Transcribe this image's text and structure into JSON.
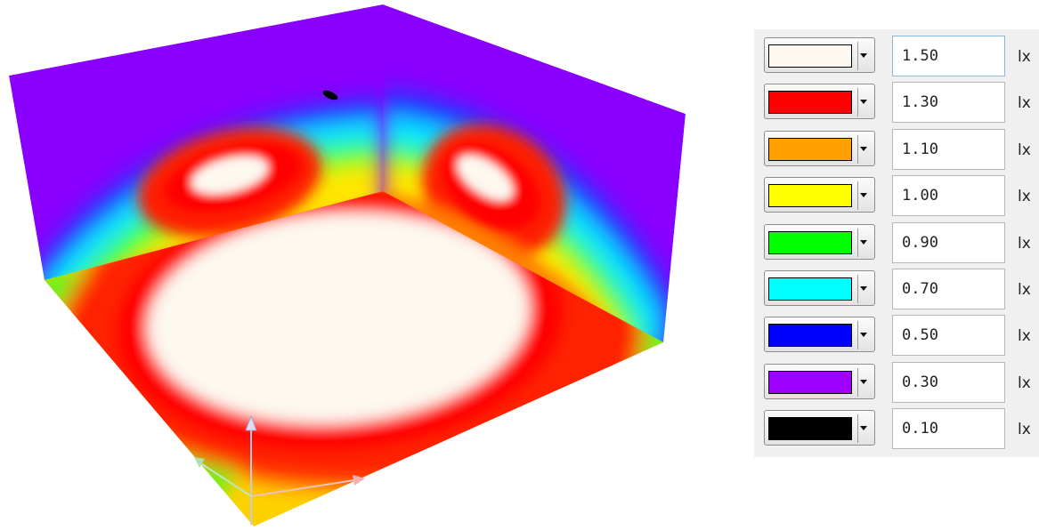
{
  "legend": {
    "unit": "lx",
    "rows": [
      {
        "value": "1.50",
        "color": "#fdf8f0"
      },
      {
        "value": "1.30",
        "color": "#ff0000"
      },
      {
        "value": "1.10",
        "color": "#ffa000"
      },
      {
        "value": "1.00",
        "color": "#ffff00"
      },
      {
        "value": "0.90",
        "color": "#00ff00"
      },
      {
        "value": "0.70",
        "color": "#00ffff"
      },
      {
        "value": "0.50",
        "color": "#0000ff"
      },
      {
        "value": "0.30",
        "color": "#a000ff"
      },
      {
        "value": "0.10",
        "color": "#000000"
      }
    ]
  },
  "viewport": {
    "colors": {
      "white": "#fdf8f0",
      "red": "#ff0000",
      "orange": "#ffa000",
      "yellow": "#ffff00",
      "green": "#00ff00",
      "cyan": "#00ffff",
      "blue": "#0000ff",
      "violet": "#a000ff",
      "black": "#000000"
    },
    "gizmo_icons": [
      "axis-up-icon",
      "axis-x-icon",
      "axis-y-icon"
    ]
  }
}
